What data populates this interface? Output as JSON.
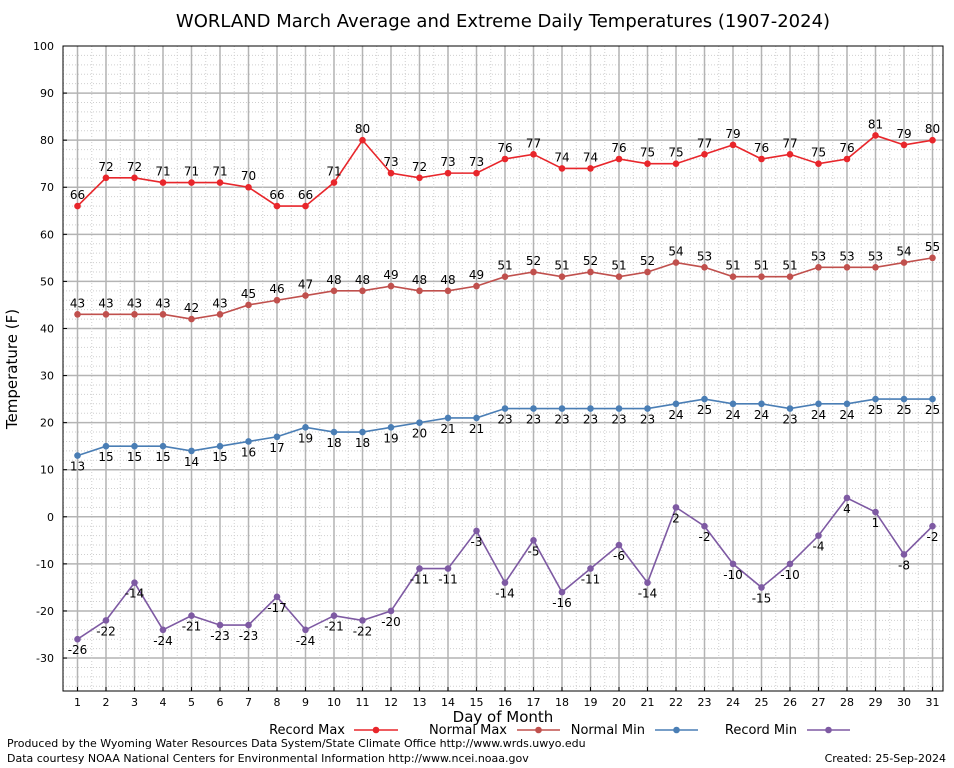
{
  "chart_data": {
    "type": "line",
    "title": "WORLAND March Average and Extreme Daily Temperatures (1907-2024)",
    "xlabel": "Day of Month",
    "ylabel": "Temperature (F)",
    "ylim": [
      -37,
      100
    ],
    "yticks": [
      -30,
      -20,
      -10,
      0,
      10,
      20,
      30,
      40,
      50,
      60,
      70,
      80,
      90,
      100
    ],
    "x": [
      1,
      2,
      3,
      4,
      5,
      6,
      7,
      8,
      9,
      10,
      11,
      12,
      13,
      14,
      15,
      16,
      17,
      18,
      19,
      20,
      21,
      22,
      23,
      24,
      25,
      26,
      27,
      28,
      29,
      30,
      31
    ],
    "grid": true,
    "legend_position": "bottom",
    "series": [
      {
        "name": "Record Max",
        "color": "#e8262b",
        "label_side": "above",
        "values": [
          66,
          72,
          72,
          71,
          71,
          71,
          70,
          66,
          66,
          71,
          80,
          73,
          72,
          73,
          73,
          76,
          77,
          74,
          74,
          76,
          75,
          75,
          77,
          79,
          76,
          77,
          75,
          76,
          81,
          79,
          80
        ]
      },
      {
        "name": "Normal Max",
        "color": "#c0504d",
        "label_side": "above",
        "values": [
          43,
          43,
          43,
          43,
          42,
          43,
          45,
          46,
          47,
          48,
          48,
          49,
          48,
          48,
          49,
          51,
          52,
          51,
          52,
          51,
          52,
          54,
          53,
          51,
          51,
          51,
          53,
          53,
          53,
          54,
          55
        ]
      },
      {
        "name": "Normal Min",
        "color": "#4a7eb5",
        "label_side": "below",
        "values": [
          13,
          15,
          15,
          15,
          14,
          15,
          16,
          17,
          19,
          18,
          18,
          19,
          20,
          21,
          21,
          23,
          23,
          23,
          23,
          23,
          23,
          24,
          25,
          24,
          24,
          23,
          24,
          24,
          25,
          25,
          25
        ]
      },
      {
        "name": "Record Min",
        "color": "#7e5aa3",
        "label_side": "below",
        "values": [
          -26,
          -22,
          -14,
          -24,
          -21,
          -23,
          -23,
          -17,
          -24,
          -21,
          -22,
          -20,
          -11,
          -11,
          -3,
          -14,
          -5,
          -16,
          -11,
          -6,
          -14,
          2,
          -2,
          -10,
          -15,
          -10,
          -4,
          4,
          1,
          -8,
          -2
        ]
      }
    ]
  },
  "footer": {
    "produced_by": "Produced by the Wyoming Water Resources Data System/State Climate Office http://www.wrds.uwyo.edu",
    "courtesy": "Data courtesy NOAA National Centers for Environmental Information http://www.ncei.noaa.gov",
    "created": "Created:  25-Sep-2024"
  }
}
